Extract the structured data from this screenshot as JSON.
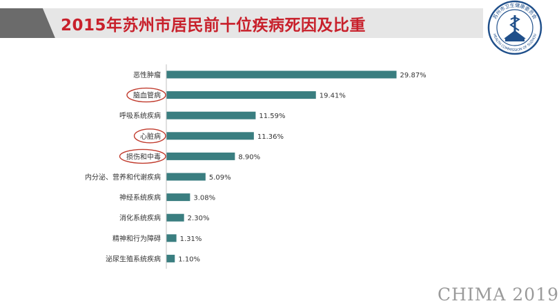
{
  "header": {
    "title": "2015年苏州市居民前十位疾病死因及比重"
  },
  "logo": {
    "arc_text_top": "苏州市卫生健康委员会",
    "arc_text_bottom": "HEALTH COMMISSION OF SUZHOU"
  },
  "footer": {
    "text": "CHIMA 2019"
  },
  "colors": {
    "bar": "#3a7e80",
    "title": "#c8202b",
    "highlight_ellipse": "#c0392b",
    "band_dark": "#6b6b6b",
    "band_light": "#e6e6e6"
  },
  "chart_data": {
    "type": "bar",
    "orientation": "horizontal",
    "title": "",
    "xlabel": "",
    "ylabel": "",
    "categories": [
      "恶性肿瘤",
      "脑血管病",
      "呼吸系统疾病",
      "心脏病",
      "损伤和中毒",
      "内分泌、营养和代谢疾病",
      "神经系统疾病",
      "消化系统疾病",
      "精神和行为障碍",
      "泌尿生殖系统疾病"
    ],
    "values": [
      29.87,
      19.41,
      11.59,
      11.36,
      8.9,
      5.09,
      3.08,
      2.3,
      1.31,
      1.1
    ],
    "value_labels": [
      "29.87%",
      "19.41%",
      "11.59%",
      "11.36%",
      "8.90%",
      "5.09%",
      "3.08%",
      "2.30%",
      "1.31%",
      "1.10%"
    ],
    "highlighted_categories": [
      "脑血管病",
      "心脏病",
      "损伤和中毒"
    ],
    "xlim": [
      0,
      30
    ],
    "grid": false,
    "legend": "none"
  }
}
